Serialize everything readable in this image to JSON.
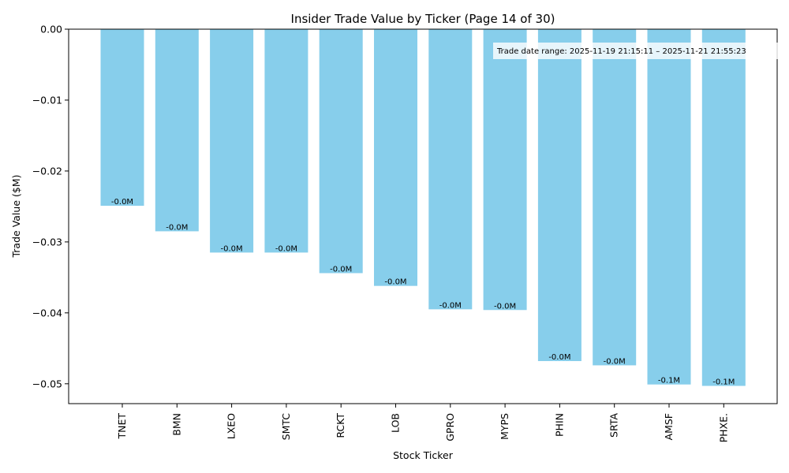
{
  "chart_data": {
    "type": "bar",
    "title": "Insider Trade Value by Ticker (Page 14 of 30)",
    "xlabel": "Stock Ticker",
    "ylabel": "Trade Value ($M)",
    "categories": [
      "TNET",
      "BMN",
      "LXEO",
      "SMTC",
      "RCKT",
      "LOB",
      "GPRO",
      "MYPS",
      "PHIN",
      "SRTA",
      "AMSF",
      "PHXE."
    ],
    "values": [
      -0.0249,
      -0.0285,
      -0.0315,
      -0.0315,
      -0.0344,
      -0.0362,
      -0.0395,
      -0.0396,
      -0.0468,
      -0.0474,
      -0.0501,
      -0.0503
    ],
    "data_labels": [
      "-0.0M",
      "-0.0M",
      "-0.0M",
      "-0.0M",
      "-0.0M",
      "-0.0M",
      "-0.0M",
      "-0.0M",
      "-0.0M",
      "-0.0M",
      "-0.1M",
      "-0.1M"
    ],
    "yticks": [
      0.0,
      -0.01,
      -0.02,
      -0.03,
      -0.04,
      -0.05
    ],
    "ytick_labels": [
      "0.00",
      "−0.01",
      "−0.02",
      "−0.03",
      "−0.04",
      "−0.05"
    ],
    "ylim": [
      -0.0528,
      0.0
    ],
    "bar_color": "#87CEEB",
    "grid": false,
    "annotation": "Trade date range: 2025-11-19 21:15:11 – 2025-11-21 21:55:23"
  }
}
